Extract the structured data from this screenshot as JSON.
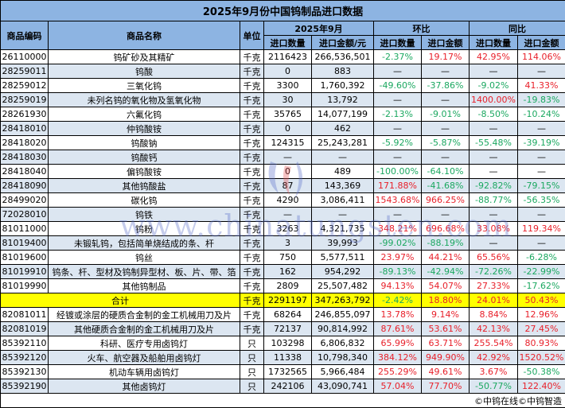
{
  "title": "2025年9月份中国钨制品进口数据",
  "headers": {
    "code": "商品编码",
    "name": "商品名称",
    "unit": "单位",
    "period": "2025年9月",
    "mom": "环比",
    "yoy": "同比",
    "qty": "进口数量",
    "amount": "进口金额/元",
    "mom_qty": "进口数量",
    "mom_amount": "进口金额",
    "yoy_qty": "进口数量",
    "yoy_amount": "进口金额"
  },
  "rows": [
    {
      "code": "26110000",
      "name": "钨矿砂及其精矿",
      "unit": "千克",
      "qty": "2116423",
      "amount": "266,536,501",
      "mom_qty": "-2.37%",
      "mom_amount": "19.17%",
      "yoy_qty": "42.95%",
      "yoy_amount": "114.06%"
    },
    {
      "code": "28259011",
      "name": "钨酸",
      "unit": "千克",
      "qty": "0",
      "amount": "883",
      "mom_qty": "—",
      "mom_amount": "—",
      "yoy_qty": "—",
      "yoy_amount": "—"
    },
    {
      "code": "28259012",
      "name": "三氧化钨",
      "unit": "千克",
      "qty": "3300",
      "amount": "1,760,392",
      "mom_qty": "-49.60%",
      "mom_amount": "-37.86%",
      "yoy_qty": "-9.02%",
      "yoy_amount": "41.33%"
    },
    {
      "code": "28259019",
      "name": "未列名钨的氧化物及氢氧化物",
      "unit": "千克",
      "qty": "30",
      "amount": "13,792",
      "mom_qty": "—",
      "mom_amount": "—",
      "yoy_qty": "1400.00%",
      "yoy_amount": "-19.83%"
    },
    {
      "code": "28261930",
      "name": "六氟化钨",
      "unit": "千克",
      "qty": "35765",
      "amount": "14,077,199",
      "mom_qty": "-2.13%",
      "mom_amount": "-9.01%",
      "yoy_qty": "-8.50%",
      "yoy_amount": "-10.24%"
    },
    {
      "code": "28418010",
      "name": "仲钨酸铵",
      "unit": "千克",
      "qty": "0",
      "amount": "462",
      "mom_qty": "—",
      "mom_amount": "—",
      "yoy_qty": "—",
      "yoy_amount": "—"
    },
    {
      "code": "28418020",
      "name": "钨酸钠",
      "unit": "千克",
      "qty": "124315",
      "amount": "25,243,281",
      "mom_qty": "-5.92%",
      "mom_amount": "-5.87%",
      "yoy_qty": "-55.48%",
      "yoy_amount": "-39.19%"
    },
    {
      "code": "28418030",
      "name": "钨酸钙",
      "unit": "千克",
      "qty": "—",
      "amount": "—",
      "mom_qty": "—",
      "mom_amount": "—",
      "yoy_qty": "—",
      "yoy_amount": "—"
    },
    {
      "code": "28418040",
      "name": "偏钨酸铵",
      "unit": "千克",
      "qty": "0",
      "amount": "489",
      "mom_qty": "-100.00%",
      "mom_amount": "-64.10%",
      "yoy_qty": "—",
      "yoy_amount": "—"
    },
    {
      "code": "28418090",
      "name": "其他钨酸盐",
      "unit": "千克",
      "qty": "87",
      "amount": "143,369",
      "mom_qty": "171.88%",
      "mom_amount": "-41.68%",
      "yoy_qty": "-92.82%",
      "yoy_amount": "-79.15%"
    },
    {
      "code": "28499020",
      "name": "碳化钨",
      "unit": "千克",
      "qty": "4290",
      "amount": "3,086,411",
      "mom_qty": "1543.68%",
      "mom_amount": "966.25%",
      "yoy_qty": "-88.77%",
      "yoy_amount": "-56.35%"
    },
    {
      "code": "72028010",
      "name": "钨铁",
      "unit": "千克",
      "qty": "—",
      "amount": "—",
      "mom_qty": "—",
      "mom_amount": "—",
      "yoy_qty": "—",
      "yoy_amount": "—"
    },
    {
      "code": "81011000",
      "name": "钨粉",
      "unit": "千克",
      "qty": "3263",
      "amount": "4,321,735",
      "mom_qty": "348.21%",
      "mom_amount": "696.68%",
      "yoy_qty": "33.08%",
      "yoy_amount": "119.34%"
    },
    {
      "code": "81019400",
      "name": "未锻轧钨，包括简单烧结成的条、杆",
      "unit": "千克",
      "qty": "3",
      "amount": "39,993",
      "mom_qty": "-99.02%",
      "mom_amount": "-88.19%",
      "yoy_qty": "—",
      "yoy_amount": "—"
    },
    {
      "code": "81019600",
      "name": "钨丝",
      "unit": "千克",
      "qty": "750",
      "amount": "5,577,511",
      "mom_qty": "23.97%",
      "mom_amount": "44.21%",
      "yoy_qty": "65.56%",
      "yoy_amount": "-6.28%"
    },
    {
      "code": "81019910",
      "name": "钨条、杆、型材及钨制异型材、板、片、带、箔",
      "unit": "千克",
      "qty": "162",
      "amount": "954,292",
      "mom_qty": "-89.13%",
      "mom_amount": "-42.94%",
      "yoy_qty": "-72.26%",
      "yoy_amount": "-22.99%"
    },
    {
      "code": "81019990",
      "name": "其他钨制品",
      "unit": "千克",
      "qty": "2809",
      "amount": "25,507,482",
      "mom_qty": "94.13%",
      "mom_amount": "54.07%",
      "yoy_qty": "27.33%",
      "yoy_amount": "-17.62%"
    },
    {
      "total": true,
      "name": "合计",
      "unit": "千克",
      "qty": "2291197",
      "amount": "347,263,792",
      "mom_qty": "-2.42%",
      "mom_amount": "18.80%",
      "yoy_qty": "24.01%",
      "yoy_amount": "50.43%"
    },
    {
      "code": "82081011",
      "name": "经镀或涂层的硬质合金制的金工机械用刀及片",
      "unit": "千克",
      "qty": "68264",
      "amount": "246,855,097",
      "mom_qty": "13.78%",
      "mom_amount": "9.14%",
      "yoy_qty": "8.84%",
      "yoy_amount": "12.96%"
    },
    {
      "code": "82081019",
      "name": "其他硬质合金制的金工机械用刀及片",
      "unit": "千克",
      "qty": "72137",
      "amount": "90,814,992",
      "mom_qty": "87.61%",
      "mom_amount": "53.61%",
      "yoy_qty": "42.13%",
      "yoy_amount": "27.45%"
    },
    {
      "code": "85392110",
      "name": "科研、医疗专用卤钨灯",
      "unit": "只",
      "qty": "103298",
      "amount": "6,806,832",
      "mom_qty": "65.99%",
      "mom_amount": "63.71%",
      "yoy_qty": "255.54%",
      "yoy_amount": "80.93%"
    },
    {
      "code": "85392120",
      "name": "火车、航空器及船舶用卤钨灯",
      "unit": "只",
      "qty": "11338",
      "amount": "10,798,340",
      "mom_qty": "384.12%",
      "mom_amount": "949.90%",
      "yoy_qty": "42.92%",
      "yoy_amount": "1520.52%"
    },
    {
      "code": "85392130",
      "name": "机动车辆用卤钨灯",
      "unit": "只",
      "qty": "1732565",
      "amount": "5,966,484",
      "mom_qty": "255.29%",
      "mom_amount": "49.61%",
      "yoy_qty": "3.67%",
      "yoy_amount": "-50.38%"
    },
    {
      "code": "85392190",
      "name": "其他卤钨灯",
      "unit": "只",
      "qty": "242106",
      "amount": "43,090,741",
      "mom_qty": "57.04%",
      "mom_amount": "77.70%",
      "yoy_qty": "-50.77%",
      "yoy_amount": "122.40%"
    }
  ],
  "footer": "©中钨在线©中钨智造",
  "watermark": "www.chinatungsten.com",
  "colors": {
    "header": "#8DB4E2",
    "alt_row": "#DCE6F1",
    "total_row": "#FFFF00",
    "positive": "#E8202A",
    "negative": "#1BA860"
  }
}
